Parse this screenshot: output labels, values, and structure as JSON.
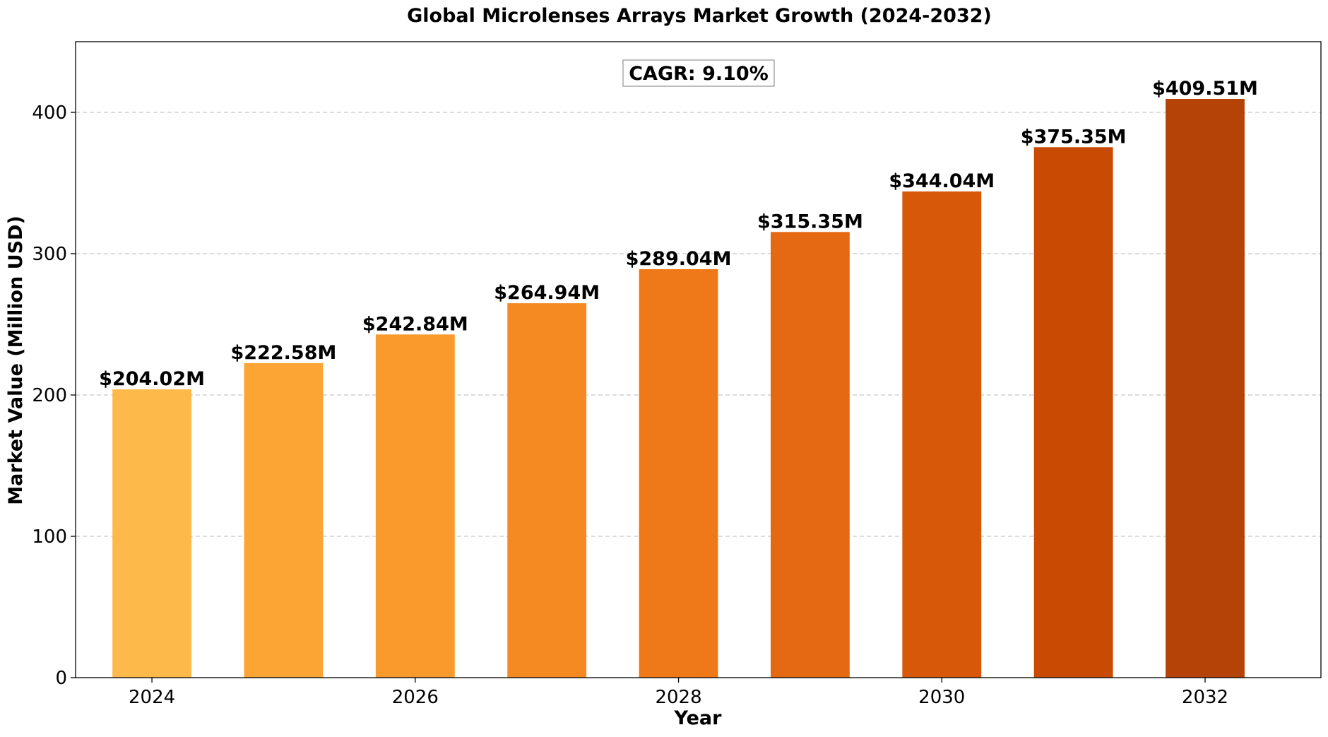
{
  "chart_data": {
    "type": "bar",
    "title": "Global Microlenses Arrays Market Growth (2024-2032)",
    "xlabel": "Year",
    "ylabel": "Market Value (Million USD)",
    "categories": [
      2024,
      2025,
      2026,
      2027,
      2028,
      2029,
      2030,
      2031,
      2032
    ],
    "values": [
      204.02,
      222.58,
      242.84,
      264.94,
      289.04,
      315.35,
      344.04,
      375.35,
      409.51
    ],
    "data_labels": [
      "$204.02M",
      "$222.58M",
      "$242.84M",
      "$264.94M",
      "$289.04M",
      "$315.35M",
      "$344.04M",
      "$375.35M",
      "$409.51M"
    ],
    "bar_colors": [
      "#fdb94a",
      "#fca535",
      "#fb9a2c",
      "#f58a22",
      "#ef7818",
      "#e56812",
      "#d8580a",
      "#c84a03",
      "#b54206"
    ],
    "x_ticks": [
      2024,
      2026,
      2028,
      2030,
      2032
    ],
    "x_tick_labels": [
      "2024",
      "2026",
      "2028",
      "2030",
      "2032"
    ],
    "y_ticks": [
      0,
      100,
      200,
      300,
      400
    ],
    "y_tick_labels": [
      "0",
      "100",
      "200",
      "300",
      "400"
    ],
    "xlim": [
      2023.42,
      2032.88
    ],
    "ylim": [
      0,
      450
    ],
    "grid": "y-dashed",
    "annotation": "CAGR: 9.10%"
  }
}
